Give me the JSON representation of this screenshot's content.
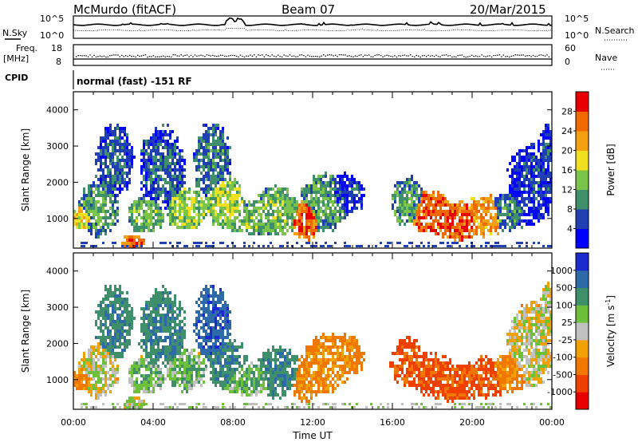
{
  "header": {
    "station": "McMurdo (fitACF)",
    "beam": "Beam 07",
    "date": "20/Mar/2015"
  },
  "noise_panel": {
    "left_label": "N.Sky",
    "right_label": "N.Search",
    "left_ticks": [
      "10^5",
      "10^0"
    ],
    "right_ticks": [
      "10^5",
      "10^0"
    ]
  },
  "freq_panel": {
    "left_label_1": "Freq.",
    "left_label_2": "[MHz]",
    "left_ticks": [
      "18",
      "8"
    ],
    "right_label": "Nave",
    "right_ticks": [
      "60",
      "0"
    ]
  },
  "cpid_panel": {
    "label": "CPID",
    "text": "normal (fast) -151 RF"
  },
  "chart_data": [
    {
      "type": "heatmap",
      "name": "power",
      "ylabel": "Slant Range [km]",
      "xlabel": "",
      "ylim": [
        180,
        4500
      ],
      "yticks": [
        "1000",
        "2000",
        "3000",
        "4000"
      ],
      "xlim_hours": [
        0,
        24
      ],
      "colorbar": {
        "label": "Power [dB]",
        "ticks": [
          "4",
          "8",
          "12",
          "16",
          "20",
          "24",
          "28"
        ],
        "colors": [
          "#0000ff",
          "#1f3fb2",
          "#3f8f6a",
          "#7bc44a",
          "#f0e020",
          "#f5a010",
          "#f06a00",
          "#e80000"
        ]
      }
    },
    {
      "type": "heatmap",
      "name": "velocity",
      "ylabel": "Slant Range [km]",
      "xlabel": "Time UT",
      "ylim": [
        180,
        4500
      ],
      "yticks": [
        "1000",
        "2000",
        "3000",
        "4000"
      ],
      "xticks": [
        "00:00",
        "04:00",
        "08:00",
        "12:00",
        "16:00",
        "20:00",
        "00:00"
      ],
      "xlim_hours": [
        0,
        24
      ],
      "colorbar": {
        "label": "Velocity [m s",
        "label_sup": "-1",
        "label_end": "]",
        "ticks": [
          "1000",
          "500",
          "100",
          "25",
          "-25",
          "-100",
          "-500",
          "-1000"
        ],
        "colors": [
          "#1a2bd0",
          "#2e6aa8",
          "#3f8f6a",
          "#6cc03c",
          "#c0c0c0",
          "#f0a000",
          "#f07800",
          "#f04000",
          "#e80000"
        ]
      }
    }
  ]
}
